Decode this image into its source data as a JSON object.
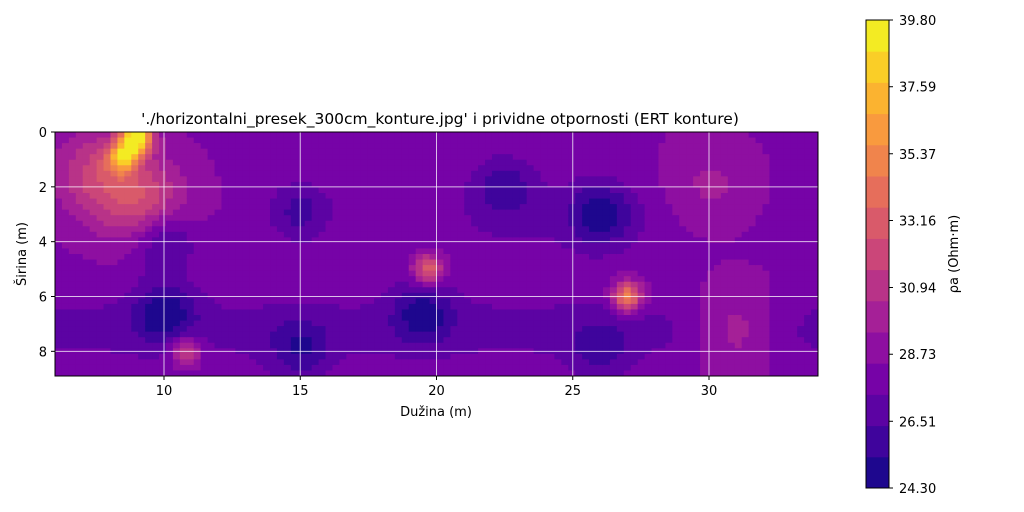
{
  "chart_data": {
    "type": "heatmap",
    "subtype": "filled-contour",
    "title": "'./horizontalni_presek_300cm_konture.jpg' i prividne otpornosti (ERT konture)",
    "xlabel": "Dužina (m)",
    "ylabel": "Širina (m)",
    "xlim": [
      6,
      34
    ],
    "ylim": [
      8.9,
      0
    ],
    "y_inverted": true,
    "xticks": [
      10,
      15,
      20,
      25,
      30
    ],
    "yticks": [
      0,
      2,
      4,
      6,
      8
    ],
    "grid": true,
    "colormap": "plasma",
    "colorbar": {
      "label": "ρa (Ohm·m)",
      "vmin": 24.3,
      "vmax": 39.8,
      "ticks": [
        "39.80",
        "37.59",
        "35.37",
        "33.16",
        "30.94",
        "28.73",
        "26.51",
        "24.30"
      ],
      "levels": 15
    },
    "background_value": 28.3,
    "features": [
      {
        "x": 9.0,
        "y": 0.2,
        "value": 39.8,
        "kind": "peak"
      },
      {
        "x": 8.5,
        "y": 0.9,
        "value": 35.8,
        "kind": "peak"
      },
      {
        "x": 9.2,
        "y": 2.5,
        "value": 32.0,
        "kind": "zone"
      },
      {
        "x": 7.5,
        "y": 1.5,
        "value": 31.5,
        "kind": "zone"
      },
      {
        "x": 10.0,
        "y": 4.0,
        "value": 25.5,
        "kind": "low"
      },
      {
        "x": 10.0,
        "y": 6.6,
        "value": 25.2,
        "kind": "low"
      },
      {
        "x": 10.8,
        "y": 8.0,
        "value": 32.5,
        "kind": "peak"
      },
      {
        "x": 15.0,
        "y": 2.9,
        "value": 26.0,
        "kind": "low"
      },
      {
        "x": 19.7,
        "y": 5.0,
        "value": 33.8,
        "kind": "peak"
      },
      {
        "x": 19.5,
        "y": 6.6,
        "value": 25.5,
        "kind": "low"
      },
      {
        "x": 22.5,
        "y": 2.0,
        "value": 26.0,
        "kind": "low"
      },
      {
        "x": 26.0,
        "y": 3.0,
        "value": 25.0,
        "kind": "low"
      },
      {
        "x": 27.0,
        "y": 6.0,
        "value": 35.3,
        "kind": "peak"
      },
      {
        "x": 31.0,
        "y": 7.2,
        "value": 30.8,
        "kind": "zone"
      },
      {
        "x": 30.0,
        "y": 2.0,
        "value": 29.8,
        "kind": "zone"
      },
      {
        "x": 15.0,
        "y": 8.0,
        "value": 26.0,
        "kind": "low"
      },
      {
        "x": 26.0,
        "y": 8.0,
        "value": 26.5,
        "kind": "low"
      }
    ]
  }
}
